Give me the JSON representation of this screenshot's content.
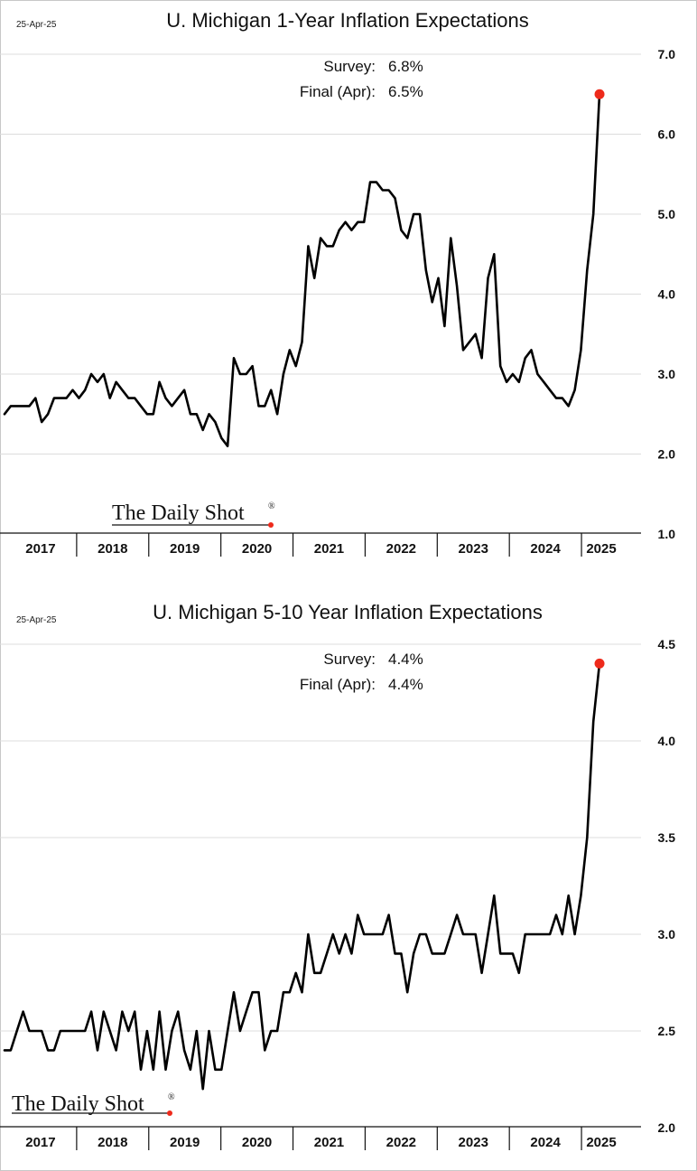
{
  "chart_data": [
    {
      "type": "line",
      "title": "U. Michigan 1-Year Inflation Expectations",
      "date": "25-Apr-25",
      "ylim": [
        1.0,
        7.0
      ],
      "yticks": [
        "7.0",
        "6.0",
        "5.0",
        "4.0",
        "3.0",
        "2.0",
        "1.0"
      ],
      "years": [
        "2017",
        "2018",
        "2019",
        "2020",
        "2021",
        "2022",
        "2023",
        "2024",
        "2025"
      ],
      "x_start": 2017.0,
      "x_end": 2025.55,
      "annotations": [
        {
          "label": "Survey:",
          "value": "6.8%"
        },
        {
          "label": "Final (Apr):",
          "value": "6.5%"
        }
      ],
      "logo": "The Daily Shot",
      "logo_mark": "®",
      "highlight_color": "#ee2a1b",
      "values": [
        2.5,
        2.6,
        2.6,
        2.6,
        2.6,
        2.7,
        2.4,
        2.5,
        2.7,
        2.7,
        2.7,
        2.8,
        2.7,
        2.8,
        3.0,
        2.9,
        3.0,
        2.7,
        2.9,
        2.8,
        2.7,
        2.7,
        2.6,
        2.5,
        2.5,
        2.9,
        2.7,
        2.6,
        2.7,
        2.8,
        2.5,
        2.5,
        2.3,
        2.5,
        2.4,
        2.2,
        2.1,
        3.2,
        3.0,
        3.0,
        3.1,
        2.6,
        2.6,
        2.8,
        2.5,
        3.0,
        3.3,
        3.1,
        3.4,
        4.6,
        4.2,
        4.7,
        4.6,
        4.6,
        4.8,
        4.9,
        4.8,
        4.9,
        4.9,
        5.4,
        5.4,
        5.3,
        5.3,
        5.2,
        4.8,
        4.7,
        5.0,
        5.0,
        4.3,
        3.9,
        4.2,
        3.6,
        4.7,
        4.1,
        3.3,
        3.4,
        3.5,
        3.2,
        4.2,
        4.5,
        3.1,
        2.9,
        3.0,
        2.9,
        3.2,
        3.3,
        3.0,
        2.9,
        2.8,
        2.7,
        2.7,
        2.6,
        2.8,
        3.3,
        4.3,
        5.0,
        6.5
      ]
    },
    {
      "type": "line",
      "title": "U. Michigan 5-10 Year Inflation Expectations",
      "date": "25-Apr-25",
      "ylim": [
        2.0,
        4.5
      ],
      "yticks": [
        "4.5",
        "4.0",
        "3.5",
        "3.0",
        "2.5",
        "2.0"
      ],
      "years": [
        "2017",
        "2018",
        "2019",
        "2020",
        "2021",
        "2022",
        "2023",
        "2024",
        "2025"
      ],
      "x_start": 2017.0,
      "x_end": 2025.55,
      "annotations": [
        {
          "label": "Survey:",
          "value": "4.4%"
        },
        {
          "label": "Final (Apr):",
          "value": "4.4%"
        }
      ],
      "logo": "The Daily Shot",
      "logo_mark": "®",
      "highlight_color": "#ee2a1b",
      "values": [
        2.4,
        2.4,
        2.5,
        2.6,
        2.5,
        2.5,
        2.5,
        2.4,
        2.4,
        2.5,
        2.5,
        2.5,
        2.5,
        2.5,
        2.6,
        2.4,
        2.6,
        2.5,
        2.4,
        2.6,
        2.5,
        2.6,
        2.3,
        2.5,
        2.3,
        2.6,
        2.3,
        2.5,
        2.6,
        2.4,
        2.3,
        2.5,
        2.2,
        2.5,
        2.3,
        2.3,
        2.5,
        2.7,
        2.5,
        2.6,
        2.7,
        2.7,
        2.4,
        2.5,
        2.5,
        2.7,
        2.7,
        2.8,
        2.7,
        3.0,
        2.8,
        2.8,
        2.9,
        3.0,
        2.9,
        3.0,
        2.9,
        3.1,
        3.0,
        3.0,
        3.0,
        3.0,
        3.1,
        2.9,
        2.9,
        2.7,
        2.9,
        3.0,
        3.0,
        2.9,
        2.9,
        2.9,
        3.0,
        3.1,
        3.0,
        3.0,
        3.0,
        2.8,
        3.0,
        3.2,
        2.9,
        2.9,
        2.9,
        2.8,
        3.0,
        3.0,
        3.0,
        3.0,
        3.0,
        3.1,
        3.0,
        3.2,
        3.0,
        3.2,
        3.5,
        4.1,
        4.4
      ]
    }
  ]
}
